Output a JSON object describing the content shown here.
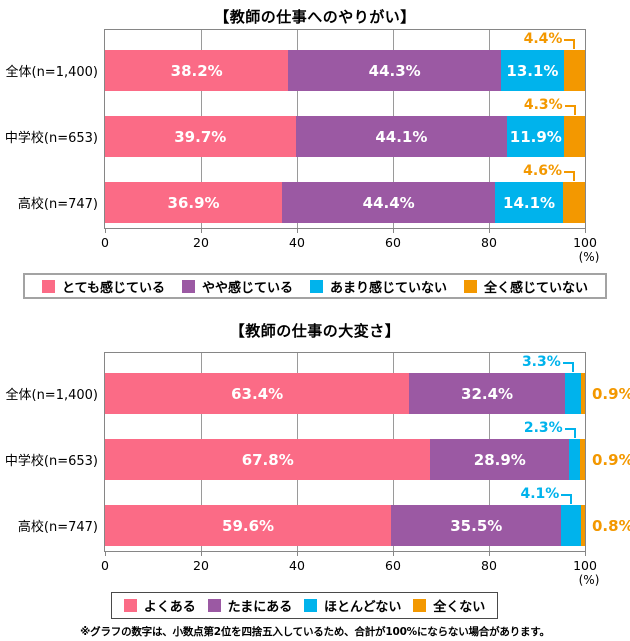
{
  "page": {
    "footnote": "※グラフの数字は、小数点第2位を四捨五入しているため、合計が100%にならない場合があります。"
  },
  "colors": {
    "pink": "#fb6b86",
    "purple": "#9b59a3",
    "cyan": "#00b3ec",
    "orange": "#f39800"
  },
  "chart_data": [
    {
      "type": "bar",
      "orientation": "horizontal",
      "stacked": true,
      "title": "【教師の仕事へのやりがい】",
      "categories": [
        "全体(n=1,400)",
        "中学校(n=653)",
        "高校(n=747)"
      ],
      "series": [
        {
          "name": "とても感じている",
          "color": "#fb6b86",
          "label_style": "inside",
          "values": [
            38.2,
            39.7,
            36.9
          ]
        },
        {
          "name": "やや感じている",
          "color": "#9b59a3",
          "label_style": "inside",
          "values": [
            44.3,
            44.1,
            44.4
          ]
        },
        {
          "name": "あまり感じていない",
          "color": "#00b3ec",
          "label_style": "inside",
          "values": [
            13.1,
            11.9,
            14.1
          ]
        },
        {
          "name": "全く感じていない",
          "color": "#f39800",
          "label_style": "above",
          "values": [
            4.4,
            4.3,
            4.6
          ]
        }
      ],
      "xlim": [
        0,
        100
      ],
      "ticks": [
        0,
        20,
        40,
        60,
        80,
        100
      ],
      "unit": "(%)",
      "grid": true,
      "legend_position": "bottom"
    },
    {
      "type": "bar",
      "orientation": "horizontal",
      "stacked": true,
      "title": "【教師の仕事の大変さ】",
      "categories": [
        "全体(n=1,400)",
        "中学校(n=653)",
        "高校(n=747)"
      ],
      "series": [
        {
          "name": "よくある",
          "color": "#fb6b86",
          "label_style": "inside",
          "values": [
            63.4,
            67.8,
            59.6
          ]
        },
        {
          "name": "たまにある",
          "color": "#9b59a3",
          "label_style": "inside",
          "values": [
            32.4,
            28.9,
            35.5
          ]
        },
        {
          "name": "ほとんどない",
          "color": "#00b3ec",
          "label_style": "above",
          "values": [
            3.3,
            2.3,
            4.1
          ]
        },
        {
          "name": "全くない",
          "color": "#f39800",
          "label_style": "outside",
          "values": [
            0.9,
            0.9,
            0.8
          ]
        }
      ],
      "xlim": [
        0,
        100
      ],
      "ticks": [
        0,
        20,
        40,
        60,
        80,
        100
      ],
      "unit": "(%)",
      "grid": true,
      "legend_position": "bottom"
    }
  ]
}
